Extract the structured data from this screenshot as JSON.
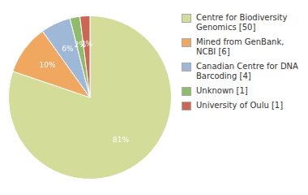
{
  "chart_data": {
    "type": "pie",
    "categories": [
      "Centre for Biodiversity\nGenomics [50]",
      "Mined from GenBank, NCBI [6]",
      "Canadian Centre for DNA\nBarcoding [4]",
      "Unknown [1]",
      "University of Oulu [1]"
    ],
    "values": [
      81,
      10,
      6,
      2,
      2
    ],
    "value_labels": [
      "81%",
      "10%",
      "6%",
      "2%",
      "2%"
    ],
    "colors": [
      "#d4dc9a",
      "#f0a860",
      "#a0b8d8",
      "#8fbc6a",
      "#cc6655"
    ],
    "data_labels": true,
    "legend": "right"
  }
}
